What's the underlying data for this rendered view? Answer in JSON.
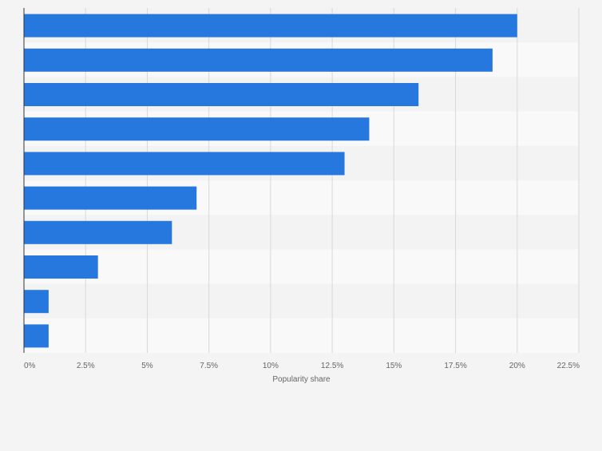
{
  "colors": {
    "bar": "#2677de",
    "background": "#f4f4f5",
    "band_light": "#f9f9fa",
    "band_dark": "#f3f3f4",
    "grid": "#d8d8da",
    "axis": "#333333",
    "tick_text": "#666666"
  },
  "chart_data": {
    "type": "bar",
    "orientation": "horizontal",
    "categories": [
      "",
      "",
      "",
      "",
      "",
      "",
      "",
      "",
      "",
      ""
    ],
    "values": [
      20,
      19,
      16,
      14,
      13,
      7,
      6,
      3,
      1,
      1
    ],
    "xlim": [
      0,
      22.5
    ],
    "xticks": [
      0,
      2.5,
      5,
      7.5,
      10,
      12.5,
      15,
      17.5,
      20,
      22.5
    ],
    "xtick_labels": [
      "0%",
      "2.5%",
      "5%",
      "7.5%",
      "10%",
      "12.5%",
      "15%",
      "17.5%",
      "20%",
      "22.5%"
    ],
    "xlabel": "Popularity share",
    "ylabel": "",
    "title": "",
    "grid": true
  }
}
